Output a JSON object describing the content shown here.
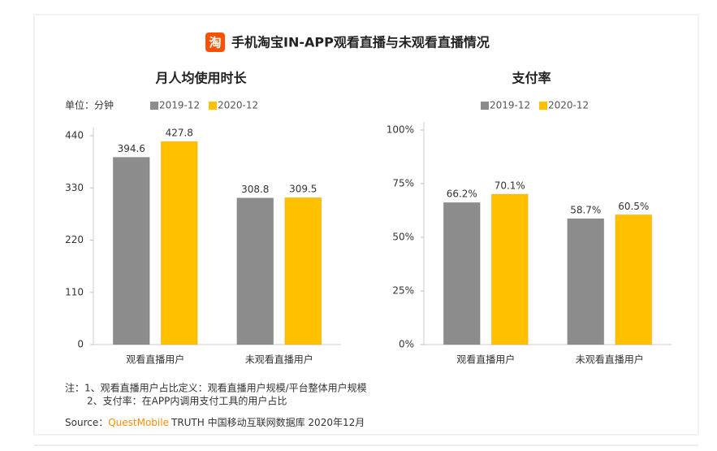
{
  "header": {
    "icon_text": "淘",
    "title": "手机淘宝IN-APP观看直播与未观看直播情况"
  },
  "chart_data": [
    {
      "type": "bar",
      "title": "月人均使用时长",
      "unit": "单位：分钟",
      "categories": [
        "观看直播用户",
        "未观看直播用户"
      ],
      "series": [
        {
          "name": "2019-12",
          "color": "#8c8c8c",
          "values": [
            394.6,
            308.8
          ]
        },
        {
          "name": "2020-12",
          "color": "#ffc000",
          "values": [
            427.8,
            309.5
          ]
        }
      ],
      "ylim": [
        0,
        440
      ],
      "yticks": [
        0,
        110,
        220,
        330,
        440
      ]
    },
    {
      "type": "bar",
      "title": "支付率",
      "categories": [
        "观看直播用户",
        "未观看直播用户"
      ],
      "series": [
        {
          "name": "2019-12",
          "color": "#8c8c8c",
          "values": [
            66.2,
            58.7
          ],
          "value_labels": [
            "66.2%",
            "58.7%"
          ]
        },
        {
          "name": "2020-12",
          "color": "#ffc000",
          "values": [
            70.1,
            60.5
          ],
          "value_labels": [
            "70.1%",
            "60.5%"
          ]
        }
      ],
      "ylim": [
        0,
        100
      ],
      "yticks": [
        {
          "value": 0,
          "label": "0%"
        },
        {
          "value": 25,
          "label": "25%"
        },
        {
          "value": 50,
          "label": "50%"
        },
        {
          "value": 75,
          "label": "75%"
        },
        {
          "value": 100,
          "label": "100%"
        }
      ]
    }
  ],
  "notes": [
    "注：1、观看直播用户占比定义：观看直播用户规模/平台整体用户规模",
    "2、支付率：在APP内调用支付工具的用户占比"
  ],
  "source": {
    "prefix": "Source：",
    "brand": "QuestMobile",
    "rest": "TRUTH 中国移动互联网数据库 2020年12月"
  }
}
